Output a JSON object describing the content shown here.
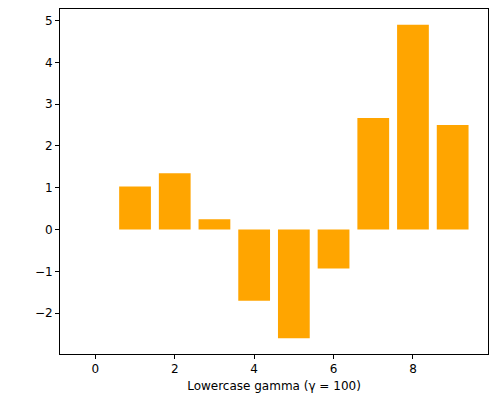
{
  "chart_data": {
    "type": "bar",
    "x_label": "Lowercase gamma (γ = 100)",
    "x": [
      0,
      1,
      2,
      3,
      4,
      5,
      6,
      7,
      8,
      9
    ],
    "values": [
      0,
      1.03,
      1.35,
      0.25,
      -1.7,
      -2.6,
      -0.93,
      2.67,
      4.9,
      2.5
    ],
    "color": "#ffa500",
    "xlim": [
      -0.89,
      9.89
    ],
    "xticks": [
      0,
      2,
      4,
      6,
      8
    ],
    "ylim": [
      -2.975,
      5.275
    ],
    "yticks": [
      {
        "value": -2,
        "label": "−2"
      },
      {
        "value": -1,
        "label": "−1"
      },
      0,
      1,
      2,
      3,
      4,
      5
    ],
    "grid": false
  }
}
